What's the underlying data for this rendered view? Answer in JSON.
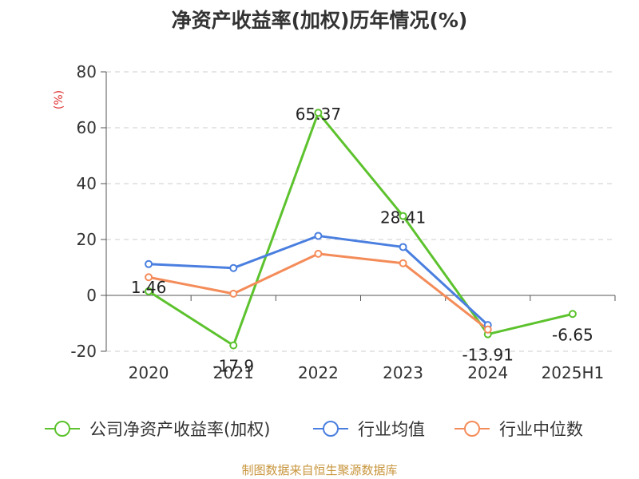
{
  "chart_data": {
    "type": "line",
    "title": "净资产收益率(加权)历年情况(%)",
    "ylabel": "(%)",
    "categories": [
      "2020",
      "2021",
      "2022",
      "2023",
      "2024",
      "2025H1"
    ],
    "ylim": [
      -20,
      80
    ],
    "yticks": [
      80,
      60,
      40,
      20,
      0,
      -20
    ],
    "grid": true,
    "legend_position": "bottom",
    "series": [
      {
        "name": "公司净资产收益率(加权)",
        "color": "#5cc22d",
        "values": [
          1.46,
          -17.9,
          65.37,
          28.41,
          -13.91,
          -6.65
        ],
        "labels": [
          "1.46",
          "-17.9",
          "65.37",
          "28.41",
          "-13.91",
          "-6.65"
        ]
      },
      {
        "name": "行业均值",
        "color": "#4a7fe0",
        "values": [
          11.2,
          9.8,
          21.3,
          17.3,
          -10.6,
          null
        ]
      },
      {
        "name": "行业中位数",
        "color": "#f48c5a",
        "values": [
          6.5,
          0.6,
          14.9,
          11.5,
          -12.2,
          null
        ]
      }
    ]
  },
  "source": "制图数据来自恒生聚源数据库"
}
